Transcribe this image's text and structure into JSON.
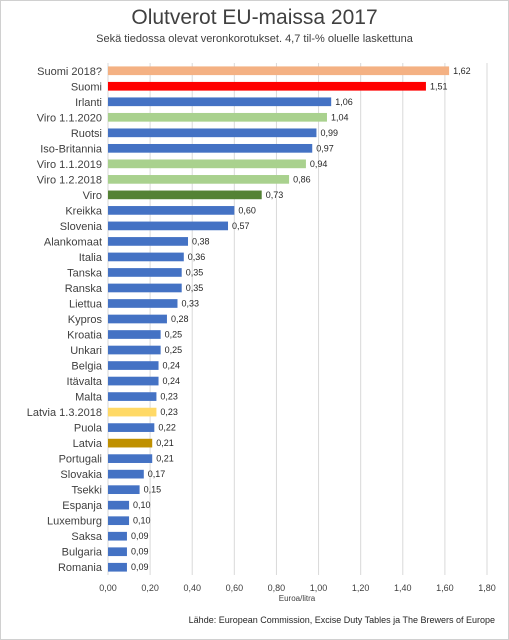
{
  "chart_data": {
    "type": "bar",
    "orientation": "horizontal",
    "title": "Olutverot EU-maissa 2017",
    "subtitle": "Sekä tiedossa olevat veronkorotukset. 4,7 til-% oluelle laskettuna",
    "xlabel": "Euroa/litra",
    "xlim": [
      0,
      1.8
    ],
    "xticks": [
      "0,00",
      "0,20",
      "0,40",
      "0,60",
      "0,80",
      "1,00",
      "1,20",
      "1,40",
      "1,60",
      "1,80"
    ],
    "grid": true,
    "source": "Lähde: European Commission, Excise Duty Tables ja The Brewers of Europe",
    "categories": [
      "Suomi 2018?",
      "Suomi",
      "Irlanti",
      "Viro 1.1.2020",
      "Ruotsi",
      "Iso-Britannia",
      "Viro 1.1.2019",
      "Viro 1.2.2018",
      "Viro",
      "Kreikka",
      "Slovenia",
      "Alankomaat",
      "Italia",
      "Tanska",
      "Ranska",
      "Liettua",
      "Kypros",
      "Kroatia",
      "Unkari",
      "Belgia",
      "Itävalta",
      "Malta",
      "Latvia 1.3.2018",
      "Puola",
      "Latvia",
      "Portugali",
      "Slovakia",
      "Tsekki",
      "Espanja",
      "Luxemburg",
      "Saksa",
      "Bulgaria",
      "Romania"
    ],
    "values": [
      1.62,
      1.51,
      1.06,
      1.04,
      0.99,
      0.97,
      0.94,
      0.86,
      0.73,
      0.6,
      0.57,
      0.38,
      0.36,
      0.35,
      0.35,
      0.33,
      0.28,
      0.25,
      0.25,
      0.24,
      0.24,
      0.23,
      0.23,
      0.22,
      0.21,
      0.21,
      0.17,
      0.15,
      0.1,
      0.1,
      0.09,
      0.09,
      0.09
    ],
    "value_labels": [
      "1,62",
      "1,51",
      "1,06",
      "1,04",
      "0,99",
      "0,97",
      "0,94",
      "0,86",
      "0,73",
      "0,60",
      "0,57",
      "0,38",
      "0,36",
      "0,35",
      "0,35",
      "0,33",
      "0,28",
      "0,25",
      "0,25",
      "0,24",
      "0,24",
      "0,23",
      "0,23",
      "0,22",
      "0,21",
      "0,21",
      "0,17",
      "0,15",
      "0,10",
      "0,10",
      "0,09",
      "0,09",
      "0,09"
    ],
    "colors": [
      "#f4b183",
      "#ff0000",
      "#4472c4",
      "#a9d18e",
      "#4472c4",
      "#4472c4",
      "#a9d18e",
      "#a9d18e",
      "#548235",
      "#4472c4",
      "#4472c4",
      "#4472c4",
      "#4472c4",
      "#4472c4",
      "#4472c4",
      "#4472c4",
      "#4472c4",
      "#4472c4",
      "#4472c4",
      "#4472c4",
      "#4472c4",
      "#4472c4",
      "#ffd966",
      "#4472c4",
      "#bf9000",
      "#4472c4",
      "#4472c4",
      "#4472c4",
      "#4472c4",
      "#4472c4",
      "#4472c4",
      "#4472c4",
      "#4472c4"
    ]
  }
}
